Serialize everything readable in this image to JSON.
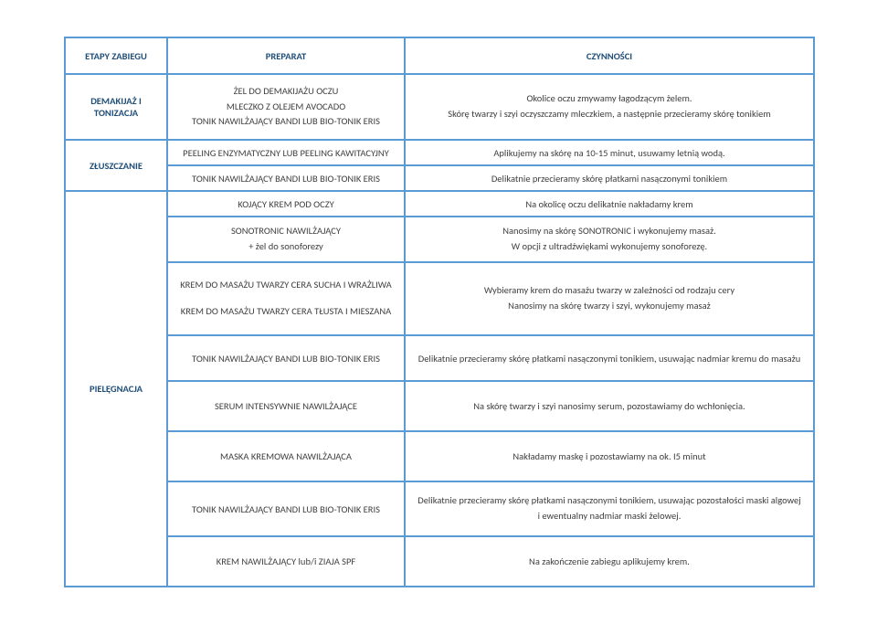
{
  "header": {
    "stage": "ETAPY ZABIEGU",
    "prep": "PREPARAT",
    "act": "CZYNNOŚCI"
  },
  "rows": [
    {
      "stageRowspan": 1,
      "stage": "DEMAKIJAŻ I TONIZACJA",
      "prepLines": [
        "ŻEL DO DEMAKIJAŻU OCZU",
        "MLECZKO Z OLEJEM AVOCADO",
        "TONIK NAWILŻAJĄCY BANDI LUB BIO-TONIK ERIS"
      ],
      "actLines": [
        "Okolice oczu zmywamy łagodzącym żelem.",
        "Skórę twarzy i szyi oczyszczamy mleczkiem, a następnie przecieramy skórę tonikiem"
      ],
      "prepH": 72,
      "actH": 72
    },
    {
      "stageRowspan": 2,
      "stage": "ZŁUSZCZANIE",
      "prep": "PEELING ENZYMATYCZNY LUB PEELING KAWITACYJNY",
      "act": "Aplikujemy na skórę na 10-15 minut, usuwamy letnią wodą."
    },
    {
      "prep": "TONIK NAWILŻAJĄCY BANDI LUB BIO-TONIK ERIS",
      "act": "Delikatnie przecieramy skórę płatkami nasączonymi tonikiem"
    },
    {
      "stageRowspan": 8,
      "stage": "PIELĘGNACJA",
      "prep": "KOJĄCY KREM POD OCZY",
      "act": "Na okolicę oczu delikatnie nakładamy krem"
    },
    {
      "prepLines": [
        "SONOTRONIC NAWILŻAJĄCY",
        "+ żel do sonoforezy"
      ],
      "actLines": [
        "Nanosimy na skórę SONOTRONIC i wykonujemy masaż.",
        "W opcji z ultradźwiękami wykonujemy sonoforezę."
      ],
      "prepH": 50,
      "actH": 50
    },
    {
      "prepLines": [
        "KREM DO MASAŻU TWARZY CERA SUCHA I WRAŻLIWA",
        "",
        "KREM DO MASAŻU TWARZY CERA TŁUSTA I MIESZANA"
      ],
      "actLines": [
        "Wybieramy krem do masażu twarzy w zależności od rodzaju cery",
        "Nanosimy na skórę twarzy i szyi, wykonujemy masaż"
      ],
      "prepH": 80,
      "actH": 80
    },
    {
      "prep": "TONIK NAWILŻAJĄCY BANDI LUB BIO-TONIK ERIS",
      "act": "Delikatnie przecieramy skórę płatkami nasączonymi tonikiem, usuwając nadmiar kremu do masażu",
      "prepH": 50,
      "actH": 50
    },
    {
      "prep": "SERUM INTENSYWNIE NAWILŻAJĄCE",
      "act": "Na skórę twarzy i szyi nanosimy serum, pozostawiamy do wchłonięcia.",
      "prepH": 55,
      "actH": 55
    },
    {
      "prep": "MASKA KREMOWA NAWILŻAJĄCA",
      "act": "Nakładamy maskę i pozostawiamy na ok. I5 minut",
      "prepH": 55,
      "actH": 55
    },
    {
      "prep": "TONIK NAWILŻAJĄCY BANDI LUB BIO-TONIK ERIS",
      "actLines": [
        "Delikatnie przecieramy skórę płatkami nasączonymi tonikiem, usuwając pozostałości maski algowej",
        "i ewentualny nadmiar maski żelowej."
      ],
      "prepH": 60,
      "actH": 60
    },
    {
      "prep": "KREM NAWILŻAJĄCY lub/i ZIAJA SPF",
      "act": "Na zakończenie zabiegu aplikujemy krem.",
      "prepH": 55,
      "actH": 55
    }
  ]
}
